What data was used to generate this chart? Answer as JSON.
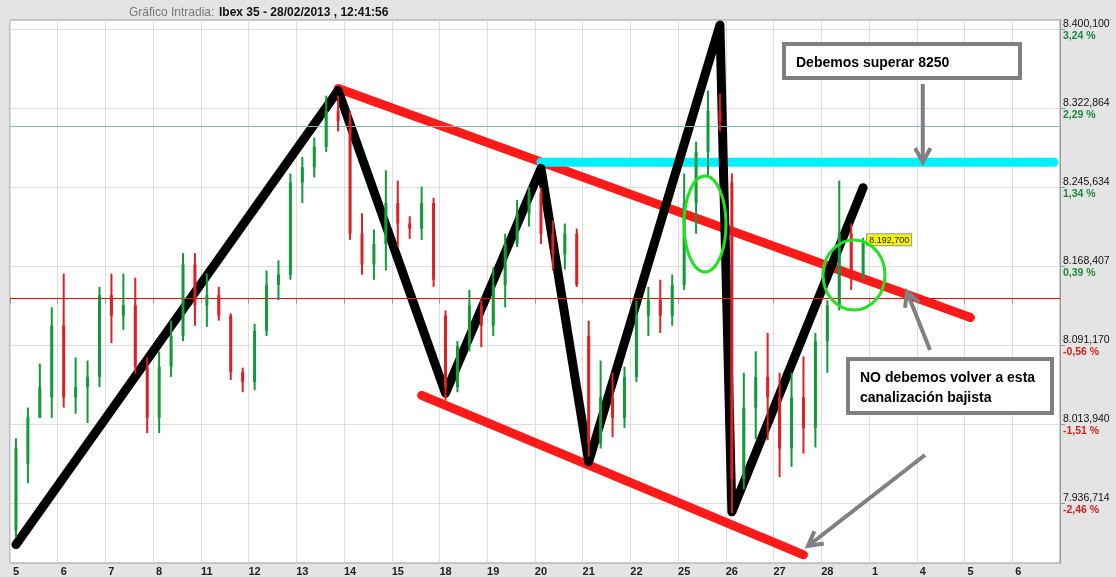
{
  "chart_data": {
    "type": "candlestick",
    "title": "Gráfico Intradia:",
    "subtitle": "Ibex 35 - 28/02/2013 , 12:41:56",
    "annotations": [
      {
        "text": "Debemos superar 8250",
        "x": "4",
        "y": 8270
      },
      "NO debemos volver a esta canalización bajista",
      "8.192,700"
    ],
    "categories": [
      "5",
      null,
      null,
      null,
      "6",
      null,
      null,
      null,
      "7",
      null,
      null,
      null,
      "8",
      null,
      null,
      null,
      "11",
      null,
      null,
      null,
      "12",
      null,
      null,
      null,
      "13",
      null,
      null,
      null,
      "14",
      null,
      null,
      null,
      "15",
      null,
      null,
      null,
      "18",
      null,
      null,
      null,
      "19",
      null,
      null,
      null,
      "20",
      null,
      null,
      null,
      "21",
      null,
      null,
      null,
      "22",
      null,
      null,
      null,
      "25",
      null,
      null,
      null,
      "26",
      null,
      null,
      null,
      "27",
      null,
      null,
      null,
      "28",
      null,
      null,
      null,
      "1",
      null,
      null,
      null,
      "4",
      null,
      null,
      null,
      "5",
      null,
      null,
      null,
      "6",
      null,
      null,
      null
    ],
    "ohlc": [
      [
        7910,
        8000,
        7903,
        7990
      ],
      [
        7975,
        8030,
        7956,
        8020
      ],
      [
        8020,
        8073,
        8020,
        8050
      ],
      [
        8040,
        8128,
        8020,
        8110
      ],
      [
        8110,
        8161,
        8030,
        8040
      ],
      [
        8040,
        8079,
        8024,
        8050
      ],
      [
        8050,
        8076,
        8015,
        8060
      ],
      [
        8060,
        8148,
        8050,
        8140
      ],
      [
        8140,
        8161,
        8093,
        8120
      ],
      [
        8120,
        8161,
        8106,
        8130
      ],
      [
        8130,
        8157,
        8063,
        8070
      ],
      [
        8070,
        8079,
        8005,
        8020
      ],
      [
        8020,
        8085,
        8005,
        8070
      ],
      [
        8070,
        8115,
        8060,
        8100
      ],
      [
        8100,
        8181,
        8095,
        8170
      ],
      [
        8170,
        8181,
        8110,
        8130
      ],
      [
        8130,
        8161,
        8109,
        8140
      ],
      [
        8140,
        8148,
        8115,
        8120
      ],
      [
        8120,
        8122,
        8057,
        8065
      ],
      [
        8065,
        8069,
        8045,
        8055
      ],
      [
        8055,
        8112,
        8047,
        8105
      ],
      [
        8105,
        8164,
        8100,
        8150
      ],
      [
        8150,
        8174,
        8135,
        8160
      ],
      [
        8160,
        8259,
        8155,
        8250
      ],
      [
        8250,
        8275,
        8230,
        8265
      ],
      [
        8265,
        8294,
        8255,
        8285
      ],
      [
        8285,
        8335,
        8280,
        8320
      ],
      [
        8320,
        8335,
        8300,
        8310
      ],
      [
        8310,
        8320,
        8194,
        8200
      ],
      [
        8200,
        8220,
        8160,
        8170
      ],
      [
        8170,
        8204,
        8155,
        8190
      ],
      [
        8190,
        8262,
        8164,
        8230
      ],
      [
        8230,
        8252,
        8187,
        8210
      ],
      [
        8210,
        8217,
        8195,
        8205
      ],
      [
        8205,
        8246,
        8194,
        8230
      ],
      [
        8230,
        8235,
        8148,
        8155
      ],
      [
        8120,
        8125,
        8037,
        8050
      ],
      [
        8050,
        8095,
        8045,
        8090
      ],
      [
        8090,
        8145,
        8085,
        8130
      ],
      [
        8130,
        8135,
        8089,
        8110
      ],
      [
        8110,
        8167,
        8100,
        8150
      ],
      [
        8150,
        8200,
        8128,
        8190
      ],
      [
        8190,
        8233,
        8187,
        8220
      ],
      [
        8220,
        8246,
        8207,
        8240
      ],
      [
        8240,
        8245,
        8190,
        8200
      ],
      [
        8200,
        8213,
        8164,
        8180
      ],
      [
        8180,
        8210,
        8165,
        8200
      ],
      [
        8200,
        8205,
        8148,
        8150
      ],
      [
        8100,
        8115,
        7982,
        7995
      ],
      [
        7995,
        8076,
        7990,
        8040
      ],
      [
        8040,
        8064,
        8001,
        8020
      ],
      [
        8020,
        8070,
        8010,
        8060
      ],
      [
        8060,
        8135,
        8055,
        8120
      ],
      [
        8120,
        8148,
        8100,
        8135
      ],
      [
        8135,
        8155,
        8103,
        8120
      ],
      [
        8120,
        8160,
        8110,
        8150
      ],
      [
        8150,
        8259,
        8145,
        8230
      ],
      [
        8230,
        8290,
        8200,
        8280
      ],
      [
        8280,
        8340,
        8255,
        8320
      ],
      [
        8320,
        8337,
        8300,
        8310
      ],
      [
        8250,
        8259,
        7927,
        7960
      ],
      [
        7960,
        8064,
        7950,
        8030
      ],
      [
        8030,
        8085,
        7999,
        8060
      ],
      [
        8060,
        8103,
        7998,
        8040
      ],
      [
        8040,
        8064,
        7962,
        7990
      ],
      [
        7990,
        8064,
        7972,
        8040
      ],
      [
        8040,
        8080,
        7985,
        8010
      ],
      [
        8010,
        8103,
        7991,
        8095
      ],
      [
        8095,
        8135,
        8064,
        8130
      ],
      [
        8130,
        8252,
        8125,
        8200
      ],
      [
        8200,
        8210,
        8145,
        8160
      ],
      [
        8160,
        8196,
        8155,
        8192.7
      ],
      null,
      null,
      null,
      null,
      null,
      null,
      null,
      null,
      null,
      null,
      null,
      null,
      null,
      null,
      null,
      null
    ],
    "colors": [
      "#129a3a",
      "#129a3a",
      "#129a3a",
      "#129a3a",
      "#dd1f26",
      "#129a3a",
      "#129a3a",
      "#129a3a",
      "#dd1f26",
      "#129a3a",
      "#dd1f26",
      "#dd1f26",
      "#129a3a",
      "#129a3a",
      "#129a3a",
      "#dd1f26",
      "#129a3a",
      "#dd1f26",
      "#dd1f26",
      "#dd1f26",
      "#129a3a",
      "#129a3a",
      "#129a3a",
      "#129a3a",
      "#129a3a",
      "#129a3a",
      "#129a3a",
      "#dd1f26",
      "#dd1f26",
      "#dd1f26",
      "#129a3a",
      "#129a3a",
      "#dd1f26",
      "#dd1f26",
      "#129a3a",
      "#dd1f26",
      "#dd1f26",
      "#129a3a",
      "#129a3a",
      "#dd1f26",
      "#129a3a",
      "#129a3a",
      "#129a3a",
      "#129a3a",
      "#dd1f26",
      "#dd1f26",
      "#129a3a",
      "#dd1f26",
      "#dd1f26",
      "#129a3a",
      "#dd1f26",
      "#129a3a",
      "#129a3a",
      "#129a3a",
      "#dd1f26",
      "#129a3a",
      "#129a3a",
      "#129a3a",
      "#129a3a",
      "#dd1f26",
      "#dd1f26",
      "#129a3a",
      "#129a3a",
      "#dd1f26",
      "#dd1f26",
      "#129a3a",
      "#dd1f26",
      "#129a3a",
      "#129a3a",
      "#129a3a",
      "#dd1f26",
      "#129a3a",
      null,
      null,
      null,
      null,
      null,
      null,
      null,
      null,
      null,
      null,
      null,
      null,
      null,
      null,
      null,
      null
    ],
    "series": [
      {
        "type": "line",
        "color": "#ff1a1a",
        "values": [
          null,
          null,
          null,
          null,
          null,
          null,
          null,
          null,
          null,
          null,
          null,
          null,
          null,
          null,
          null,
          null,
          null,
          null,
          null,
          null,
          null,
          null,
          null,
          null,
          null,
          null,
          null,
          8342,
          null,
          null,
          null,
          null,
          null,
          null,
          null,
          null,
          null,
          null,
          null,
          null,
          null,
          null,
          null,
          null,
          null,
          null,
          null,
          null,
          null,
          null,
          null,
          null,
          null,
          null,
          null,
          null,
          null,
          null,
          null,
          null,
          null,
          null,
          null,
          null,
          null,
          null,
          null,
          null,
          null,
          null,
          null,
          null,
          null,
          null,
          null,
          null,
          null,
          null,
          null,
          null,
          8118,
          null,
          null,
          null,
          null,
          null,
          null,
          null
        ]
      },
      {
        "type": "line",
        "color": "#ff1a1a",
        "values": [
          null,
          null,
          null,
          null,
          null,
          null,
          null,
          null,
          null,
          null,
          null,
          null,
          null,
          null,
          null,
          null,
          null,
          null,
          null,
          null,
          null,
          null,
          null,
          null,
          null,
          null,
          null,
          null,
          null,
          null,
          null,
          null,
          null,
          null,
          8042,
          null,
          null,
          null,
          null,
          null,
          null,
          null,
          null,
          null,
          null,
          null,
          null,
          null,
          null,
          null,
          null,
          null,
          null,
          null,
          null,
          null,
          null,
          null,
          null,
          null,
          null,
          null,
          null,
          null,
          null,
          null,
          7886,
          null,
          null,
          null,
          null,
          null,
          null,
          null,
          null,
          null,
          null,
          null,
          null,
          null,
          null,
          null,
          null,
          null,
          null,
          null,
          null,
          null
        ]
      },
      {
        "type": "line",
        "color": "#00f0ff",
        "values": [
          null,
          null,
          null,
          null,
          null,
          null,
          null,
          null,
          null,
          null,
          null,
          null,
          null,
          null,
          null,
          null,
          null,
          null,
          null,
          null,
          null,
          null,
          null,
          null,
          null,
          null,
          null,
          null,
          null,
          null,
          null,
          null,
          null,
          null,
          null,
          null,
          null,
          null,
          null,
          null,
          null,
          null,
          null,
          null,
          8270,
          null,
          null,
          null,
          null,
          null,
          null,
          null,
          null,
          null,
          null,
          null,
          null,
          null,
          null,
          null,
          null,
          null,
          null,
          null,
          null,
          null,
          null,
          null,
          null,
          null,
          null,
          null,
          null,
          null,
          null,
          null,
          null,
          null,
          null,
          null,
          null,
          null,
          null,
          null,
          null,
          null,
          null,
          8270
        ]
      },
      {
        "type": "line",
        "color": "#000000",
        "values": [
          7896,
          null,
          null,
          null,
          null,
          null,
          null,
          null,
          null,
          null,
          null,
          null,
          null,
          null,
          null,
          null,
          null,
          null,
          null,
          null,
          null,
          null,
          null,
          null,
          null,
          null,
          null,
          8340,
          null,
          null,
          null,
          null,
          null,
          null,
          null,
          null,
          8044,
          null,
          null,
          null,
          null,
          null,
          null,
          null,
          8264,
          null,
          null,
          null,
          7977,
          null,
          null,
          null,
          null,
          null,
          null,
          null,
          null,
          null,
          null,
          8404,
          7928,
          null,
          null,
          null,
          null,
          null,
          null,
          null,
          null,
          null,
          null,
          8245,
          null,
          null,
          null,
          null,
          null,
          null,
          null,
          null,
          null,
          null,
          null,
          null,
          null,
          null,
          null,
          null
        ]
      }
    ],
    "ref_lines": [
      {
        "axis": "y",
        "value": 8136.5,
        "color": "#ff0000"
      },
      {
        "axis": "y",
        "value": 8305,
        "color": "#7fbcbc"
      }
    ],
    "ylim": [
      7878,
      8409
    ],
    "yticks": [
      {
        "value": 8400.1,
        "label": "8.400,100"
      },
      {
        "value": 8322.864,
        "label": "8.322,864"
      },
      {
        "value": 8245.634,
        "label": "8.245,634"
      },
      {
        "value": 8168.407,
        "label": "8.168,407"
      },
      {
        "value": 8091.17,
        "label": "8.091,170"
      },
      {
        "value": 8013.94,
        "label": "8.013,940"
      },
      {
        "value": 7936.714,
        "label": "7.936,714"
      }
    ],
    "y2lim": [
      -3.18,
      3.35
    ],
    "y2ticks": [
      {
        "value": 3.24,
        "label": "3,24 %"
      },
      {
        "value": 2.29,
        "label": "2,29 %"
      },
      {
        "value": 1.34,
        "label": "1,34 %"
      },
      {
        "value": 0.39,
        "label": "0,39 %"
      },
      {
        "value": -0.56,
        "label": "-0,56 %"
      },
      {
        "value": -1.51,
        "label": "-1,51 %"
      },
      {
        "value": -2.46,
        "label": "-2,46 %"
      }
    ],
    "grid": true
  }
}
